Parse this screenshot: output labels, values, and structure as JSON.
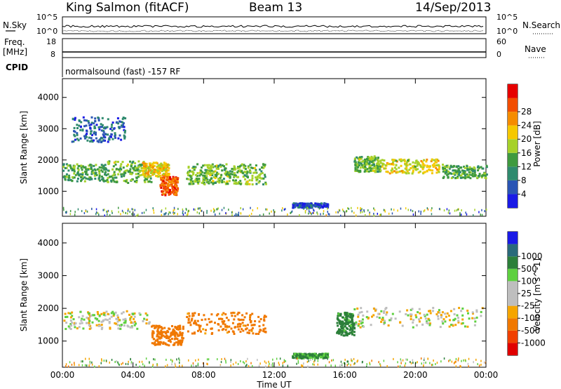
{
  "header": {
    "station": "King Salmon (fitACF)",
    "beam": "Beam 13",
    "date": "14/Sep/2013"
  },
  "strips": {
    "nsky_label": "N.Sky",
    "nsearch_label": "N.Search",
    "nsky_ticks": [
      "10^5",
      "10^0"
    ],
    "nsky_ticks_right": [
      "10^5",
      "10^0"
    ],
    "freq_label": "Freq.",
    "freq_unit": "[MHz]",
    "freq_ticks": [
      "18",
      "8"
    ],
    "nave_label": "Nave",
    "nave_ticks": [
      "60",
      "0"
    ],
    "cpid_label": "CPID",
    "cpid_text": "normalsound (fast) -157 RF"
  },
  "colors": {
    "power_scale": [
      "#1a1ae6",
      "#2a55b4",
      "#2f8a6e",
      "#3f9a3f",
      "#a6d12a",
      "#f5c800",
      "#f58c00",
      "#f24d00",
      "#e60000"
    ],
    "velocity_scale": [
      "#1a1ae6",
      "#2a6a7a",
      "#2c7f3a",
      "#5ed040",
      "#bebebe",
      "#bebebe",
      "#f5a500",
      "#f07800",
      "#f04000",
      "#e00000"
    ]
  },
  "chart_data": [
    {
      "type": "heatmap",
      "title": "",
      "xlabel": "Time UT",
      "ylabel": "Slant Range [km]",
      "xlim": [
        0,
        24
      ],
      "ylim": [
        200,
        4600
      ],
      "yticks": [
        1000,
        2000,
        3000,
        4000
      ],
      "ytick_labels": [
        "1000",
        "2000",
        "3000",
        "4000"
      ],
      "colorbar": {
        "label": "Power [dB]",
        "range": [
          0,
          32
        ],
        "ticks": [
          4,
          8,
          12,
          16,
          20,
          24,
          28
        ],
        "tick_labels": [
          "4",
          "8",
          "12",
          "16",
          "20",
          "24",
          "28"
        ]
      },
      "regions": [
        {
          "t": [
            0.0,
            2.5
          ],
          "r": [
            1350,
            1900
          ],
          "v": 12
        },
        {
          "t": [
            2.5,
            5.0
          ],
          "r": [
            1300,
            2000
          ],
          "v": 14
        },
        {
          "t": [
            4.5,
            6.0
          ],
          "r": [
            1500,
            1950
          ],
          "v": 20
        },
        {
          "t": [
            5.5,
            6.5
          ],
          "r": [
            900,
            1500
          ],
          "v": 26
        },
        {
          "t": [
            7.0,
            9.0
          ],
          "r": [
            1250,
            1900
          ],
          "v": 14
        },
        {
          "t": [
            9.0,
            11.5
          ],
          "r": [
            1250,
            1900
          ],
          "v": 14
        },
        {
          "t": [
            16.5,
            18.0
          ],
          "r": [
            1650,
            2150
          ],
          "v": 14
        },
        {
          "t": [
            18.0,
            21.5
          ],
          "r": [
            1600,
            2050
          ],
          "v": 18
        },
        {
          "t": [
            21.5,
            24.0
          ],
          "r": [
            1450,
            1850
          ],
          "v": 12
        },
        {
          "t": [
            0.5,
            3.5
          ],
          "r": [
            2600,
            3400
          ],
          "v": 6
        },
        {
          "t": [
            13.0,
            15.0
          ],
          "r": [
            500,
            650
          ],
          "v": 4
        }
      ]
    },
    {
      "type": "heatmap",
      "title": "",
      "xlabel": "Time UT",
      "ylabel": "Slant Range [km]",
      "xlim": [
        0,
        24
      ],
      "ylim": [
        200,
        4600
      ],
      "yticks": [
        1000,
        2000,
        3000,
        4000
      ],
      "ytick_labels": [
        "1000",
        "2000",
        "3000",
        "4000"
      ],
      "xticks": [
        0,
        4,
        8,
        12,
        16,
        20,
        24
      ],
      "xtick_labels": [
        "00:00",
        "04:00",
        "08:00",
        "12:00",
        "16:00",
        "20:00",
        "00:00"
      ],
      "colorbar": {
        "label": "Velocity [m s^-1]",
        "tick_labels": [
          "1000",
          "500",
          "100",
          "25",
          "-25",
          "-100",
          "-500",
          "-1000"
        ]
      },
      "regions": [
        {
          "t": [
            0.0,
            5.0
          ],
          "r": [
            1400,
            1950
          ],
          "v": 0
        },
        {
          "t": [
            5.0,
            6.8
          ],
          "r": [
            900,
            1500
          ],
          "v": -300
        },
        {
          "t": [
            7.0,
            11.5
          ],
          "r": [
            1250,
            1900
          ],
          "v": -150
        },
        {
          "t": [
            15.5,
            16.5
          ],
          "r": [
            1200,
            1900
          ],
          "v": 150
        },
        {
          "t": [
            16.5,
            24.0
          ],
          "r": [
            1450,
            2050
          ],
          "v": 0
        },
        {
          "t": [
            13.0,
            15.0
          ],
          "r": [
            500,
            650
          ],
          "v": 120
        }
      ]
    }
  ]
}
